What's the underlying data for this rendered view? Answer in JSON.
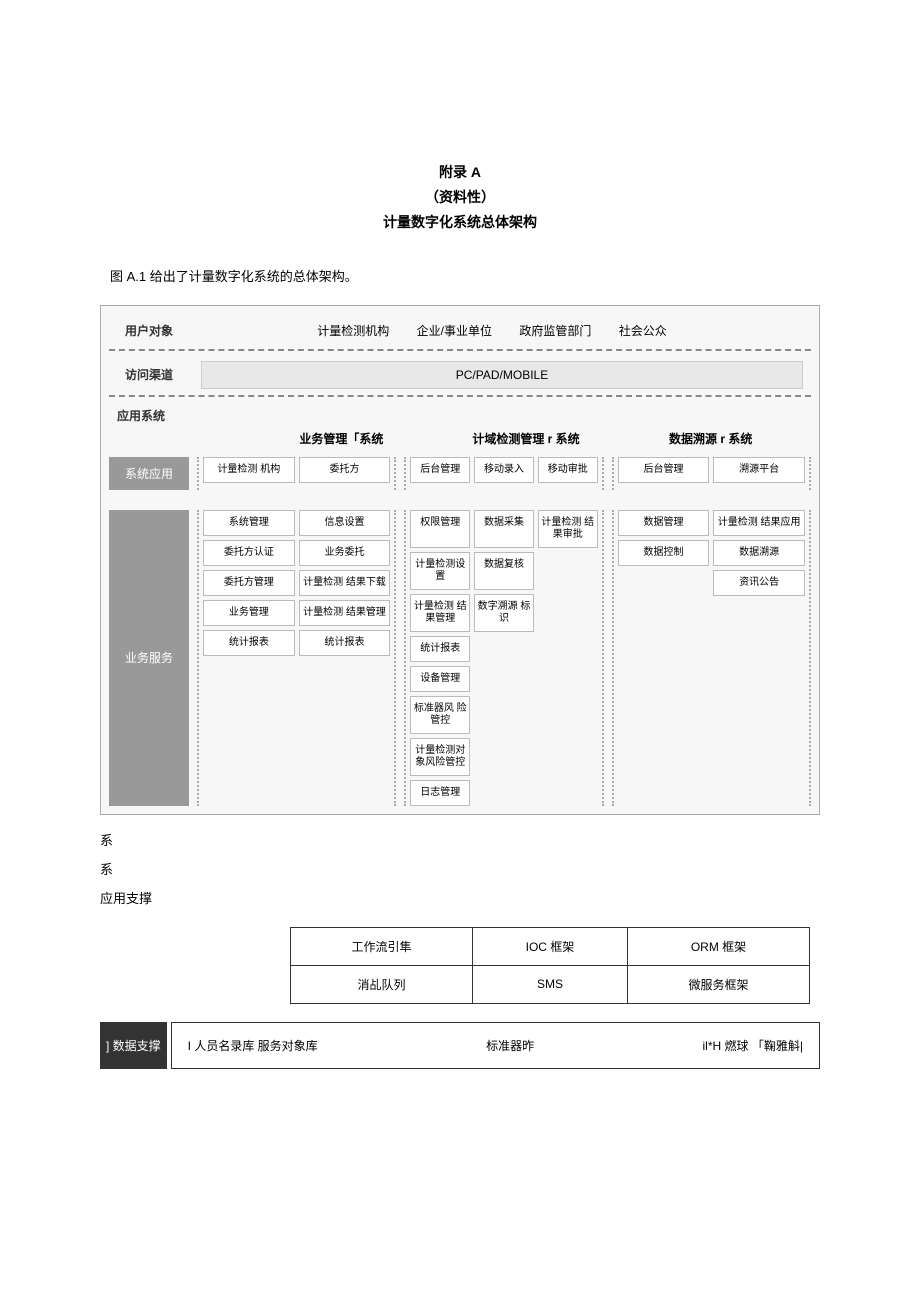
{
  "header": {
    "line1": "附录 A",
    "line2": "（资料性）",
    "line3": "计量数字化系统总体架构"
  },
  "caption": "图 A.1 给出了计量数字化系统的总体架构。",
  "diagram": {
    "users_label": "用户对象",
    "users": [
      "计量检测机构",
      "企业/事业单位",
      "政府监管部门",
      "社会公众"
    ],
    "channel_label": "访问渠道",
    "channel_value": "PC/PAD/MOBILE",
    "app_label": "应用系统",
    "systems": [
      "业务管理「系统",
      "计域检测管理 r 系统",
      "数据溯源 r 系统"
    ],
    "sys_app_label": "系统应用",
    "sys_app": {
      "col1": [
        [
          "计量检测\n机构",
          "委托方"
        ]
      ],
      "col2": [
        [
          "后台管理",
          "移动录入",
          "移动审批"
        ]
      ],
      "col3": [
        [
          "后台管理",
          "溯源平台"
        ]
      ]
    },
    "biz_label": "业务服务",
    "biz": {
      "col1": [
        [
          "系统管理",
          "信息设置"
        ],
        [
          "委托方认证",
          "业务委托"
        ],
        [
          "委托方管理",
          "计量检测\n结果下载"
        ],
        [
          "业务管理",
          "计量检测\n结果管理"
        ],
        [
          "统计报表",
          "统计报表"
        ]
      ],
      "col2": [
        [
          "权限管理",
          "数据采集",
          "计量检测\n结果审批"
        ],
        [
          "计量检测设置",
          "数据复核",
          ""
        ],
        [
          "计量检测\n结果管理",
          "数字溯源\n标识",
          ""
        ],
        [
          "统计报表",
          "",
          ""
        ],
        [
          "设备管理",
          "",
          ""
        ],
        [
          "标准器风\n险管控",
          "",
          ""
        ],
        [
          "计量检测对\n象风险管控",
          "",
          ""
        ],
        [
          "日志管理",
          "",
          ""
        ]
      ],
      "col3": [
        [
          "数据管理",
          "计量检测\n结果应用"
        ],
        [
          "数据控制",
          "数据溯源"
        ],
        [
          "",
          "资讯公告"
        ]
      ]
    }
  },
  "standalone": {
    "l1": "系",
    "l2": "系",
    "l3": "应用支撑"
  },
  "support_table": {
    "rows": [
      [
        "工作流引隼",
        "IOC 框架",
        "ORM 框架"
      ],
      [
        "消乩队列",
        "SMS",
        "微服务框架"
      ]
    ]
  },
  "data_support": {
    "label": "] 数据支撑",
    "items": [
      "I 人员名录库  服务对象库",
      "标准器昨",
      "il*H 燃球 「鞠雅斛|"
    ]
  }
}
